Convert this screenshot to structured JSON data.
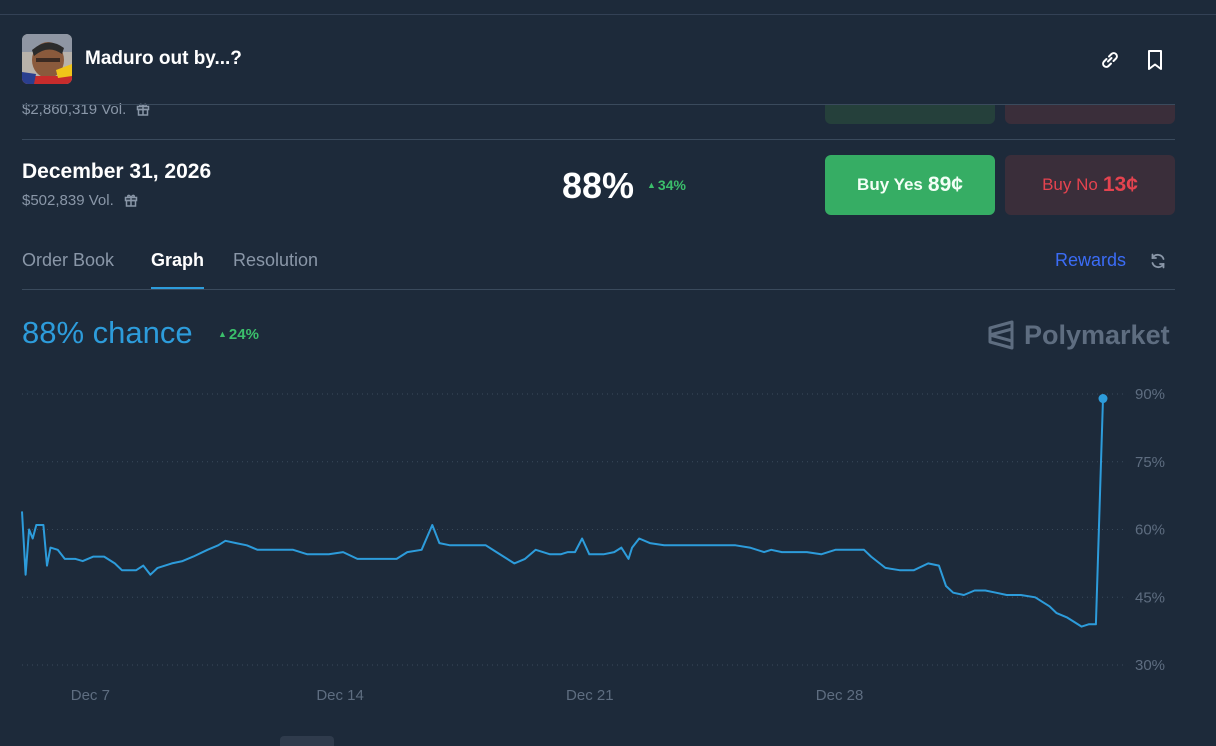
{
  "header": {
    "title": "Maduro out by...?",
    "link_icon": "link-icon",
    "bookmark_icon": "bookmark-icon"
  },
  "previous_outcome": {
    "volume": "$2,860,319 Vol."
  },
  "outcome": {
    "title": "December 31, 2026",
    "volume": "$502,839 Vol.",
    "percent": "88%",
    "change": "34%",
    "buy_yes_label": "Buy Yes",
    "buy_yes_price": "89¢",
    "buy_no_label": "Buy No",
    "buy_no_price": "13¢"
  },
  "tabs": [
    {
      "label": "Order Book"
    },
    {
      "label": "Graph",
      "active": true
    },
    {
      "label": "Resolution"
    }
  ],
  "rewards_label": "Rewards",
  "chance": {
    "text": "88% chance",
    "change": "24%"
  },
  "brand": "Polymarket",
  "colors": {
    "background": "#1d2a3a",
    "accent": "#2d9cdb",
    "yes": "#36ad64",
    "no": "#e4434f",
    "up": "#3bbf6b"
  },
  "chart_data": {
    "type": "line",
    "x_tick_labels": [
      "Dec 7",
      "Dec 14",
      "Dec 21",
      "Dec 28"
    ],
    "y_tick_labels": [
      "90%",
      "75%",
      "60%",
      "45%",
      "30%"
    ],
    "ylim": [
      30,
      90
    ],
    "grid": true,
    "series": [
      {
        "color": "#2d9cdb",
        "points": [
          [
            5.0,
            64
          ],
          [
            5.1,
            50
          ],
          [
            5.2,
            60
          ],
          [
            5.3,
            58
          ],
          [
            5.4,
            61
          ],
          [
            5.6,
            61
          ],
          [
            5.7,
            52
          ],
          [
            5.8,
            56
          ],
          [
            6.0,
            55.5
          ],
          [
            6.2,
            53.5
          ],
          [
            6.5,
            53.5
          ],
          [
            6.7,
            53
          ],
          [
            7.0,
            54
          ],
          [
            7.3,
            54
          ],
          [
            7.6,
            52.5
          ],
          [
            7.8,
            51
          ],
          [
            8.2,
            51
          ],
          [
            8.4,
            52
          ],
          [
            8.6,
            50
          ],
          [
            8.8,
            51.5
          ],
          [
            9.2,
            52.5
          ],
          [
            9.5,
            53
          ],
          [
            9.8,
            54
          ],
          [
            10.2,
            55.5
          ],
          [
            10.5,
            56.5
          ],
          [
            10.7,
            57.5
          ],
          [
            11.0,
            57
          ],
          [
            11.3,
            56.5
          ],
          [
            11.6,
            55.5
          ],
          [
            12.0,
            55.5
          ],
          [
            12.6,
            55.5
          ],
          [
            13.0,
            54.5
          ],
          [
            13.6,
            54.5
          ],
          [
            14.0,
            55
          ],
          [
            14.4,
            53.5
          ],
          [
            15.0,
            53.5
          ],
          [
            15.5,
            53.5
          ],
          [
            15.8,
            55
          ],
          [
            16.2,
            55.5
          ],
          [
            16.5,
            61
          ],
          [
            16.7,
            57
          ],
          [
            17.0,
            56.5
          ],
          [
            17.5,
            56.5
          ],
          [
            18.0,
            56.5
          ],
          [
            18.3,
            55
          ],
          [
            18.6,
            53.5
          ],
          [
            18.8,
            52.5
          ],
          [
            19.1,
            53.5
          ],
          [
            19.4,
            55.5
          ],
          [
            19.6,
            55
          ],
          [
            19.8,
            54.5
          ],
          [
            20.1,
            54.5
          ],
          [
            20.3,
            55
          ],
          [
            20.5,
            55
          ],
          [
            20.7,
            58
          ],
          [
            20.9,
            54.5
          ],
          [
            21.3,
            54.5
          ],
          [
            21.6,
            55
          ],
          [
            21.8,
            56
          ],
          [
            22.0,
            53.5
          ],
          [
            22.1,
            56
          ],
          [
            22.3,
            58
          ],
          [
            22.6,
            57
          ],
          [
            23.0,
            56.5
          ],
          [
            23.5,
            56.5
          ],
          [
            24.0,
            56.5
          ],
          [
            24.5,
            56.5
          ],
          [
            25.0,
            56.5
          ],
          [
            25.4,
            56
          ],
          [
            25.8,
            55
          ],
          [
            26.0,
            55.5
          ],
          [
            26.3,
            55
          ],
          [
            26.6,
            55
          ],
          [
            27.0,
            55
          ],
          [
            27.4,
            54.5
          ],
          [
            27.8,
            55.5
          ],
          [
            28.2,
            55.5
          ],
          [
            28.6,
            55.5
          ],
          [
            28.8,
            54
          ],
          [
            29.2,
            51.5
          ],
          [
            29.6,
            51
          ],
          [
            30.0,
            51
          ],
          [
            30.4,
            52.5
          ],
          [
            30.7,
            52
          ],
          [
            30.9,
            47.5
          ],
          [
            31.1,
            46
          ],
          [
            31.4,
            45.5
          ],
          [
            31.7,
            46.5
          ],
          [
            32.0,
            46.5
          ],
          [
            32.3,
            46
          ],
          [
            32.6,
            45.5
          ],
          [
            33.0,
            45.5
          ],
          [
            33.4,
            45
          ],
          [
            33.6,
            44
          ],
          [
            33.8,
            43
          ],
          [
            34.0,
            41.5
          ],
          [
            34.3,
            40.5
          ],
          [
            34.5,
            39.5
          ],
          [
            34.7,
            38.5
          ],
          [
            34.9,
            39
          ],
          [
            35.1,
            39
          ],
          [
            35.3,
            89
          ]
        ]
      }
    ]
  }
}
